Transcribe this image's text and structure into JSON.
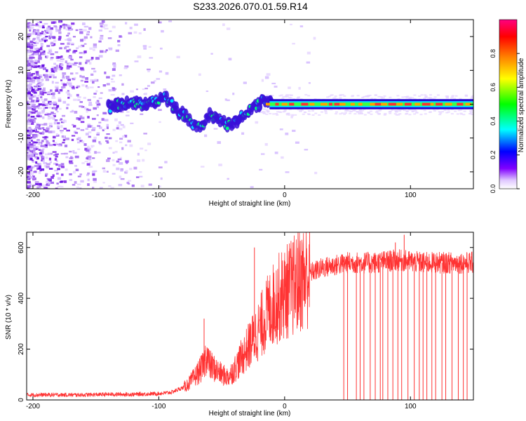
{
  "title": "S233.2026.070.01.59.R14",
  "colors": {
    "frame": "#000000",
    "snr_line": "#ff3333",
    "spectrogram_sparse": "#b590f0",
    "spectrogram_dense": "#6a00e8"
  },
  "chart_data": [
    {
      "type": "heatmap",
      "name": "spectrogram",
      "xlabel": "Height of straight line (km)",
      "ylabel": "Frequency (Hz)",
      "xlim": [
        -205,
        150
      ],
      "ylim": [
        -25,
        25
      ],
      "xticks": [
        -200,
        -100,
        0,
        100
      ],
      "yticks": [
        -20,
        -10,
        0,
        10,
        20
      ],
      "colorbar": {
        "label": "Normalized spectral amplitude",
        "range": [
          0,
          1
        ],
        "ticks": [
          "0.0",
          "0.2",
          "0.4",
          "0.6",
          "0.8"
        ],
        "tick_values": [
          0,
          0.2,
          0.4,
          0.6,
          0.8
        ],
        "colormap": [
          "#ffffff",
          "#e0c8ff",
          "#8000ff",
          "#0000ff",
          "#00ffff",
          "#00ff00",
          "#ffff00",
          "#ff8000",
          "#ff0000",
          "#ff0080"
        ]
      },
      "track": {
        "x": [
          -140,
          -130,
          -120,
          -110,
          -100,
          -95,
          -90,
          -85,
          -80,
          -75,
          -70,
          -65,
          -60,
          -55,
          -50,
          -45,
          -40,
          -35,
          -30,
          -25,
          -20,
          -15,
          -10,
          -5,
          0,
          10,
          20,
          50,
          100,
          150
        ],
        "y": [
          -1,
          0,
          0.5,
          0,
          1.5,
          2,
          0,
          -2,
          -3,
          -5,
          -7,
          -6,
          -3,
          -4,
          -5,
          -6,
          -6,
          -4,
          -2,
          -1,
          0,
          1.5,
          1,
          -0.5,
          0,
          0,
          0,
          0,
          0,
          0
        ]
      }
    },
    {
      "type": "line",
      "name": "snr",
      "xlabel": "Height of straight line (km)",
      "ylabel": "SNR (10 * v/v)",
      "xlim": [
        -205,
        150
      ],
      "ylim": [
        0,
        660
      ],
      "xticks": [
        -200,
        -100,
        0,
        100
      ],
      "yticks": [
        0,
        200,
        400,
        600
      ],
      "series": [
        {
          "name": "SNR",
          "x": [
            -205,
            -180,
            -160,
            -140,
            -120,
            -100,
            -90,
            -80,
            -75,
            -70,
            -65,
            -62,
            -60,
            -55,
            -50,
            -45,
            -40,
            -35,
            -30,
            -25,
            -20,
            -15,
            -10,
            -5,
            0,
            5,
            10,
            15,
            20,
            25,
            30,
            40,
            50,
            60,
            70,
            80,
            90,
            100,
            110,
            120,
            130,
            140,
            150
          ],
          "y": [
            20,
            20,
            20,
            22,
            22,
            25,
            30,
            50,
            70,
            100,
            130,
            180,
            140,
            120,
            100,
            90,
            120,
            160,
            200,
            240,
            280,
            330,
            370,
            400,
            420,
            440,
            460,
            480,
            500,
            510,
            520,
            530,
            540,
            540,
            540,
            545,
            550,
            545,
            540,
            540,
            540,
            540,
            540
          ]
        }
      ],
      "spikes": {
        "up": [
          [
            -64,
            320
          ],
          [
            -24,
            600
          ],
          [
            95,
            650
          ],
          [
            88,
            620
          ]
        ],
        "down": [
          47,
          50,
          57,
          60,
          63,
          68,
          72,
          76,
          78,
          82,
          86,
          90,
          93,
          98,
          103,
          107,
          110,
          113,
          117,
          120,
          125,
          128,
          133,
          138,
          142,
          145
        ]
      }
    }
  ]
}
